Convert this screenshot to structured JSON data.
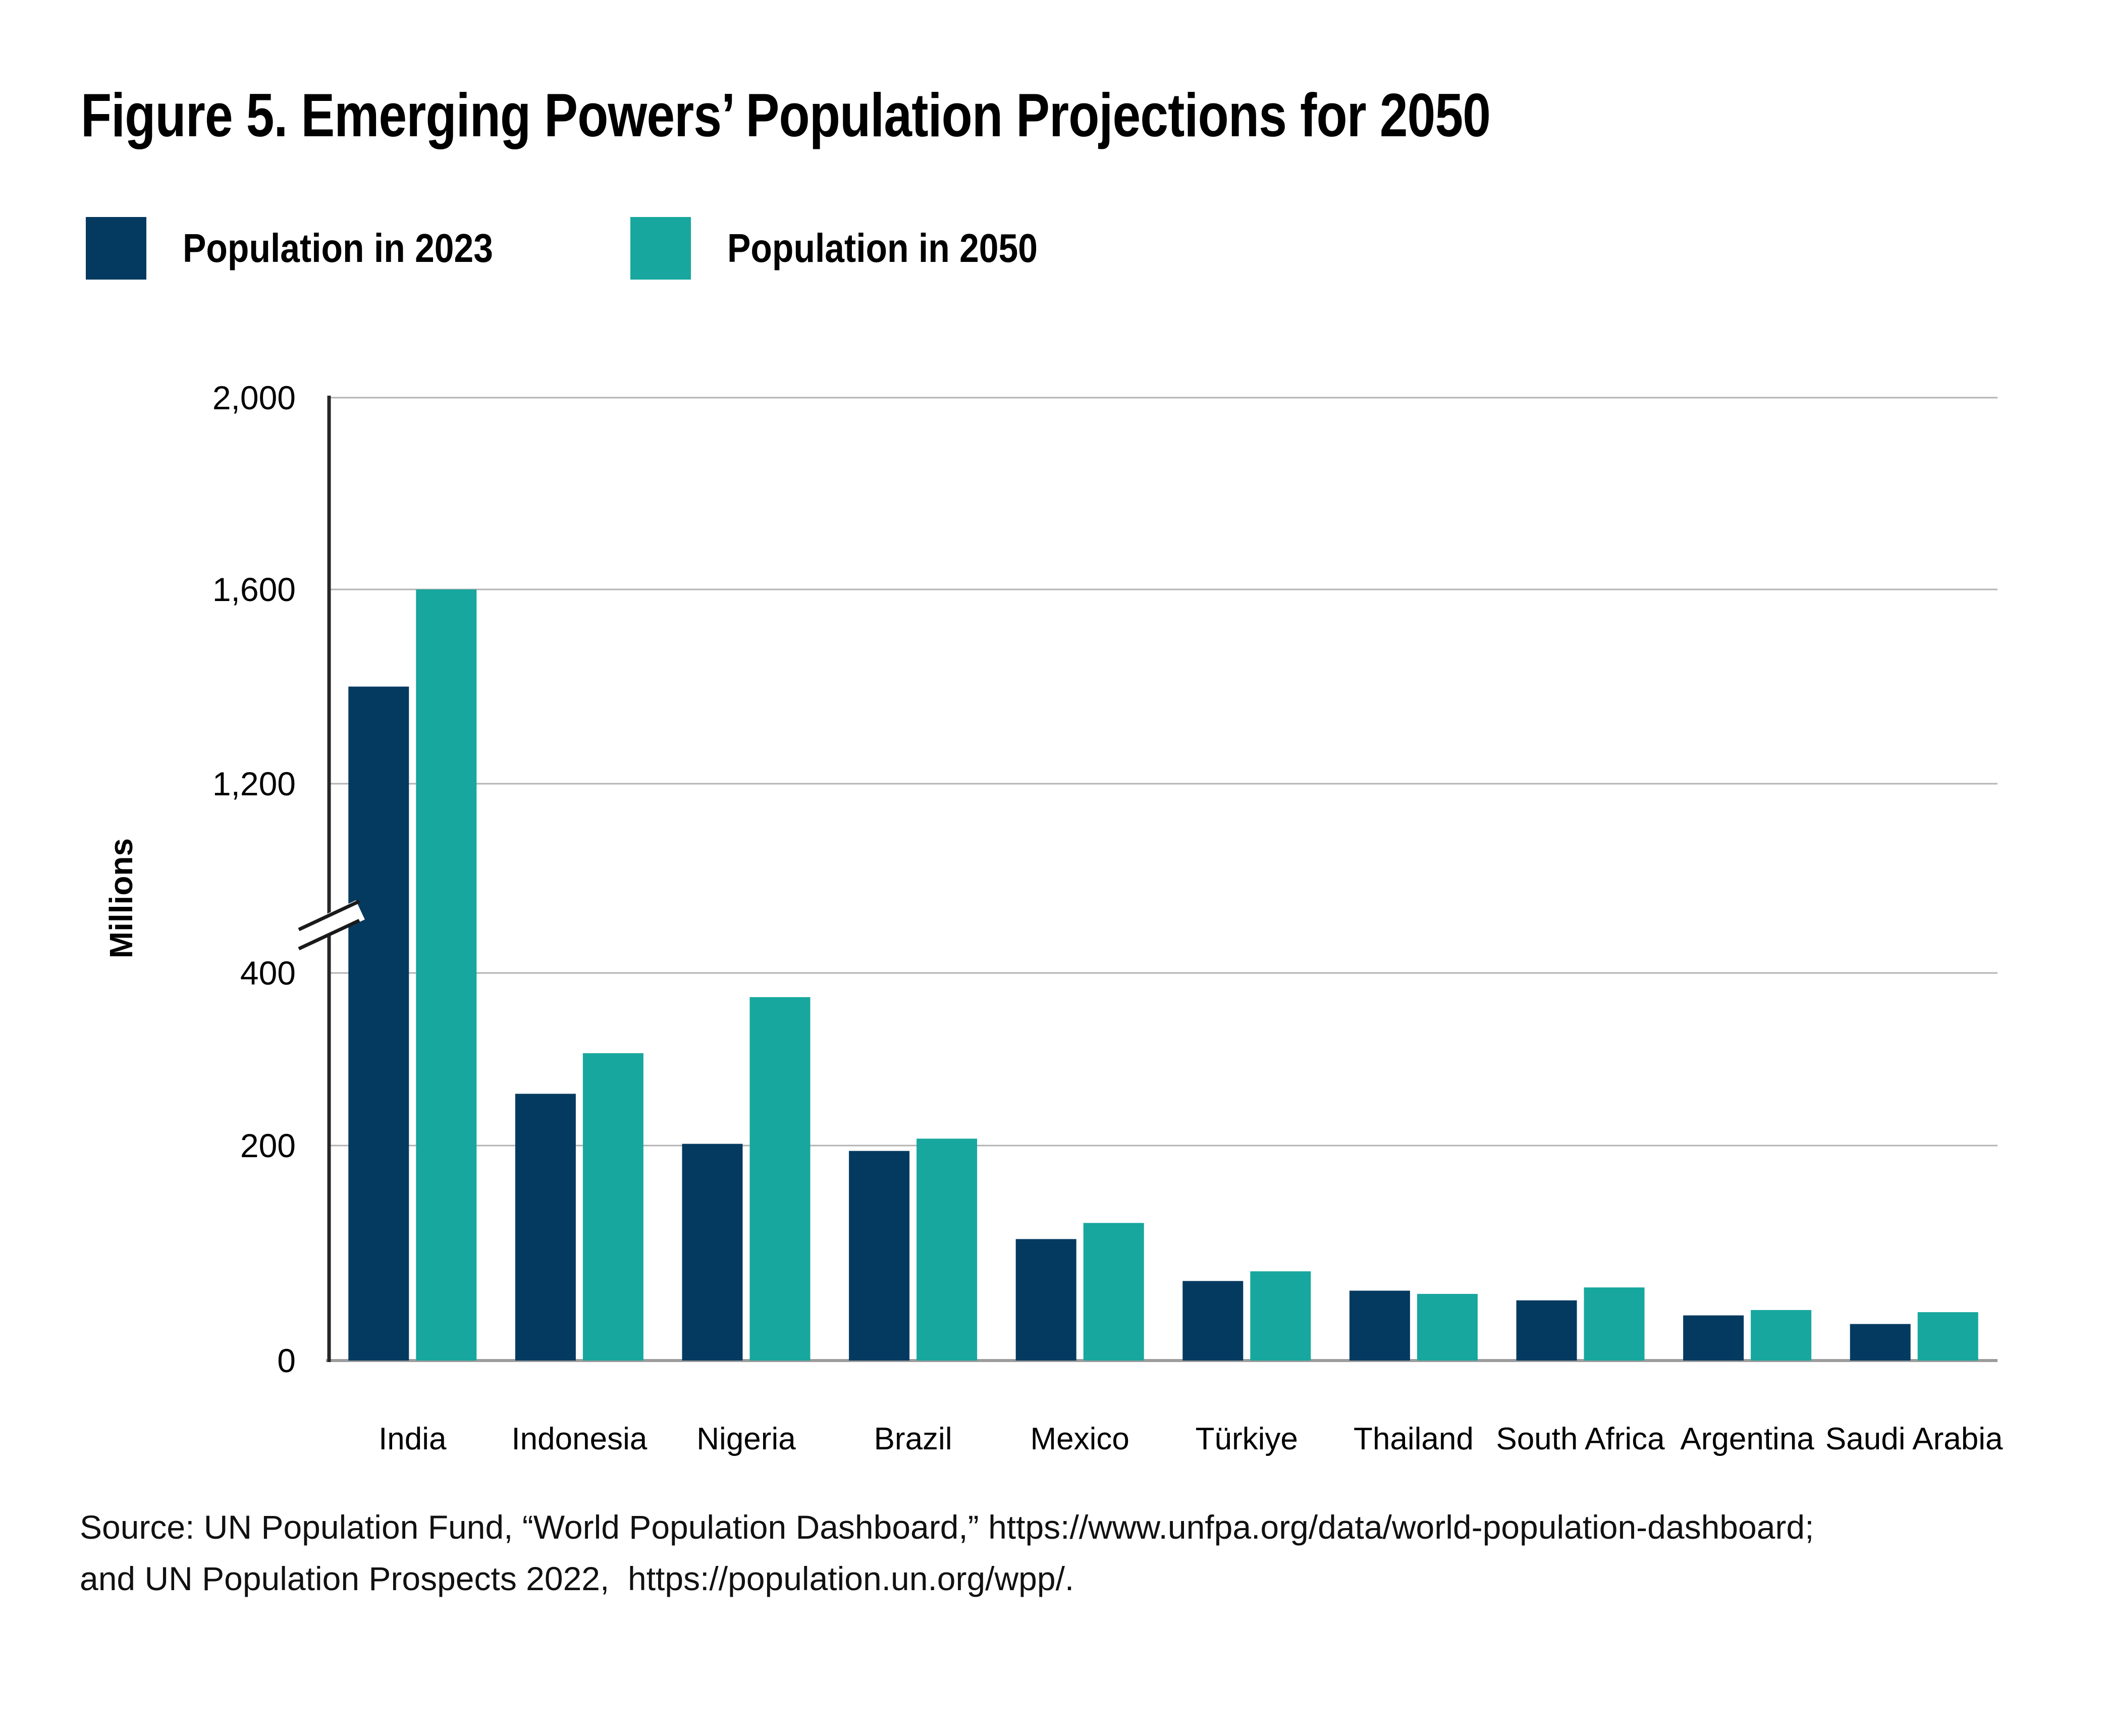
{
  "figure": {
    "title": "Figure 5. Emerging Powers’ Population Projections for 2050",
    "source_line1": "Source: UN Population Fund, “World Population Dashboard,” https://www.unfpa.org/data/world-population-dashboard;",
    "source_line2": "and UN Population Prospects 2022,  https://population.un.org/wpp/."
  },
  "chart_data": {
    "type": "bar",
    "title": "Figure 5. Emerging Powers’ Population Projections for 2050",
    "ylabel": "Millions",
    "unit": "millions of people",
    "grid": "horizontal",
    "legend_position": "top-left",
    "ylim": [
      0,
      2000
    ],
    "axis_break_between": [
      400,
      1200
    ],
    "yticks": [
      {
        "label": "0",
        "value": 0
      },
      {
        "label": "200",
        "value": 200
      },
      {
        "label": "400",
        "value": 400
      },
      {
        "label": "1,200",
        "value": 1200
      },
      {
        "label": "1,600",
        "value": 1600
      },
      {
        "label": "2,000",
        "value": 2000
      }
    ],
    "categories": [
      "India",
      "Indonesia",
      "Nigeria",
      "Brazil",
      "Mexico",
      "Türkiye",
      "Thailand",
      "South Africa",
      "Argentina",
      "Saudi Arabia"
    ],
    "series": [
      {
        "name": "Population in 2023",
        "color": "#053A60",
        "values": [
          1400,
          260,
          202,
          195,
          113,
          74,
          65,
          56,
          42,
          34
        ]
      },
      {
        "name": "Population in 2050",
        "color": "#17A79E",
        "values": [
          1600,
          307,
          372,
          208,
          128,
          83,
          62,
          68,
          47,
          45
        ]
      }
    ]
  },
  "colors": {
    "series_2023": "#053A60",
    "series_2050": "#17A79E",
    "gridline": "#b3b3b3",
    "baseline": "#9c9c9c",
    "y_axis": "#262626",
    "text": "#000000"
  }
}
